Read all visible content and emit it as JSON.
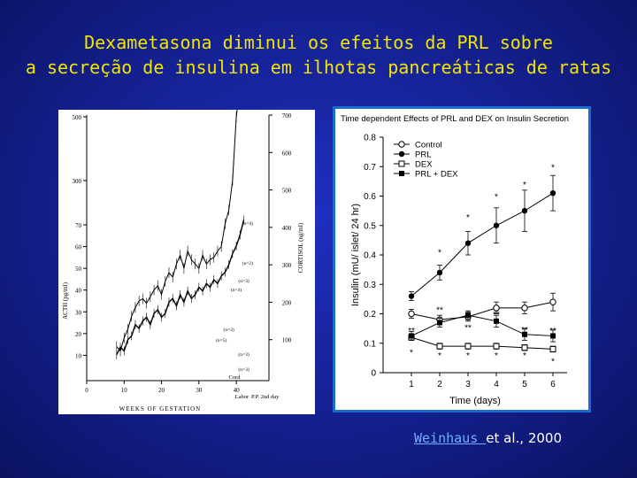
{
  "slide": {
    "title_line1": "Dexametasona diminui os efeitos da PRL sobre",
    "title_line2": "a secreção de insulina em ilhotas pancreáticas de ratas",
    "citation_link": "Weinhaus ",
    "citation_rest": "et al., 2000"
  },
  "colors": {
    "title": "#f2e600",
    "background": "#14208f",
    "link": "#6fb0ff",
    "frame": "#1a6bd0"
  },
  "chart_data": [
    {
      "type": "line",
      "title": "Time dependent Effects of PRL and DEX on Insulin Secretion",
      "xlabel": "Time (days)",
      "ylabel": "Insulin (mU/ islet/ 24 hr)",
      "x": [
        1,
        2,
        3,
        4,
        5,
        6
      ],
      "xlim": [
        0,
        6.5
      ],
      "ylim": [
        0,
        0.8
      ],
      "yticks": [
        "0",
        "0.1",
        "0.2",
        "0.3",
        "0.4",
        "0.5",
        "0.6",
        "0.7",
        "0.8"
      ],
      "legend_position": "top-left",
      "series": [
        {
          "name": "Control",
          "marker": "open-circle",
          "values": [
            0.2,
            0.18,
            0.19,
            0.22,
            0.22,
            0.24
          ],
          "errors": [
            0.015,
            0.015,
            0.015,
            0.02,
            0.02,
            0.03
          ]
        },
        {
          "name": "PRL",
          "marker": "filled-circle",
          "values": [
            0.26,
            0.34,
            0.44,
            0.5,
            0.55,
            0.61
          ],
          "errors": [
            0.015,
            0.025,
            0.04,
            0.06,
            0.07,
            0.06
          ]
        },
        {
          "name": "DEX",
          "marker": "open-square",
          "values": [
            0.12,
            0.09,
            0.09,
            0.09,
            0.085,
            0.08
          ],
          "errors": [
            0.01,
            0.01,
            0.01,
            0.01,
            0.01,
            0.01
          ]
        },
        {
          "name": "PRL + DEX",
          "marker": "filled-square",
          "values": [
            0.125,
            0.17,
            0.195,
            0.175,
            0.13,
            0.125
          ],
          "errors": [
            0.015,
            0.015,
            0.015,
            0.02,
            0.02,
            0.02
          ]
        }
      ],
      "annotations": [
        {
          "x": 2,
          "y": 0.41,
          "text": "*"
        },
        {
          "x": 3,
          "y": 0.53,
          "text": "*"
        },
        {
          "x": 4,
          "y": 0.6,
          "text": "*"
        },
        {
          "x": 5,
          "y": 0.64,
          "text": "*"
        },
        {
          "x": 6,
          "y": 0.7,
          "text": "*"
        },
        {
          "x": 1,
          "y": 0.145,
          "text": "**"
        },
        {
          "x": 2,
          "y": 0.215,
          "text": "**"
        },
        {
          "x": 3,
          "y": 0.155,
          "text": "**"
        },
        {
          "x": 4,
          "y": 0.2,
          "text": "**"
        },
        {
          "x": 5,
          "y": 0.148,
          "text": "**"
        },
        {
          "x": 6,
          "y": 0.145,
          "text": "**"
        },
        {
          "x": 1,
          "y": 0.07,
          "text": "*"
        },
        {
          "x": 2,
          "y": 0.06,
          "text": "*"
        },
        {
          "x": 3,
          "y": 0.06,
          "text": "*"
        },
        {
          "x": 4,
          "y": 0.06,
          "text": "*"
        },
        {
          "x": 5,
          "y": 0.06,
          "text": "*"
        },
        {
          "x": 6,
          "y": 0.04,
          "text": "*"
        }
      ]
    },
    {
      "type": "line",
      "xlabel": "WEEKS OF GESTATION",
      "ylabel": "ACTH (pg/ml)",
      "ylabel_right": "CORTISOL (ng/ml)",
      "xticks": [
        "0",
        "10",
        "20",
        "30",
        "40"
      ],
      "yticks_left": [
        "10",
        "20",
        "30",
        "40",
        "50",
        "60",
        "70",
        "300",
        "500"
      ],
      "yticks_right": [
        "100",
        "200",
        "300",
        "400",
        "500",
        "600",
        "700"
      ],
      "x_annotations": [
        "Cord",
        "Labor",
        "P.P. 2nd day"
      ],
      "annotations": [
        "(n=4)",
        "(n=3)",
        "(n=5)",
        "(n=2)",
        "(n=3)",
        "(n=4)",
        "(n=3)",
        "(n=3)"
      ],
      "series": [
        {
          "name": "ACTH",
          "x": [
            8,
            9,
            10,
            11,
            12,
            13,
            14,
            15,
            16,
            17,
            18,
            19,
            20,
            21,
            22,
            23,
            24,
            25,
            26,
            27,
            28,
            29,
            30,
            31,
            32,
            33,
            34,
            35,
            36,
            37,
            38,
            39,
            40,
            41
          ],
          "values": [
            14,
            12,
            18,
            22,
            28,
            32,
            35,
            36,
            34,
            37,
            40,
            42,
            38,
            44,
            48,
            46,
            52,
            56,
            50,
            58,
            54,
            52,
            50,
            56,
            52,
            54,
            55,
            58,
            60,
            80,
            150,
            300,
            500,
            600
          ]
        },
        {
          "name": "Cortisol",
          "x": [
            8,
            9,
            10,
            11,
            12,
            13,
            14,
            15,
            16,
            17,
            18,
            19,
            20,
            21,
            22,
            23,
            24,
            25,
            26,
            27,
            28,
            29,
            30,
            31,
            32,
            33,
            34,
            35,
            36,
            37,
            38,
            39,
            40,
            41,
            42
          ],
          "values": [
            60,
            80,
            70,
            100,
            110,
            140,
            130,
            150,
            160,
            140,
            170,
            180,
            160,
            170,
            200,
            210,
            190,
            220,
            200,
            230,
            210,
            220,
            240,
            230,
            250,
            240,
            260,
            250,
            270,
            280,
            300,
            330,
            350,
            380,
            420
          ]
        }
      ]
    }
  ]
}
